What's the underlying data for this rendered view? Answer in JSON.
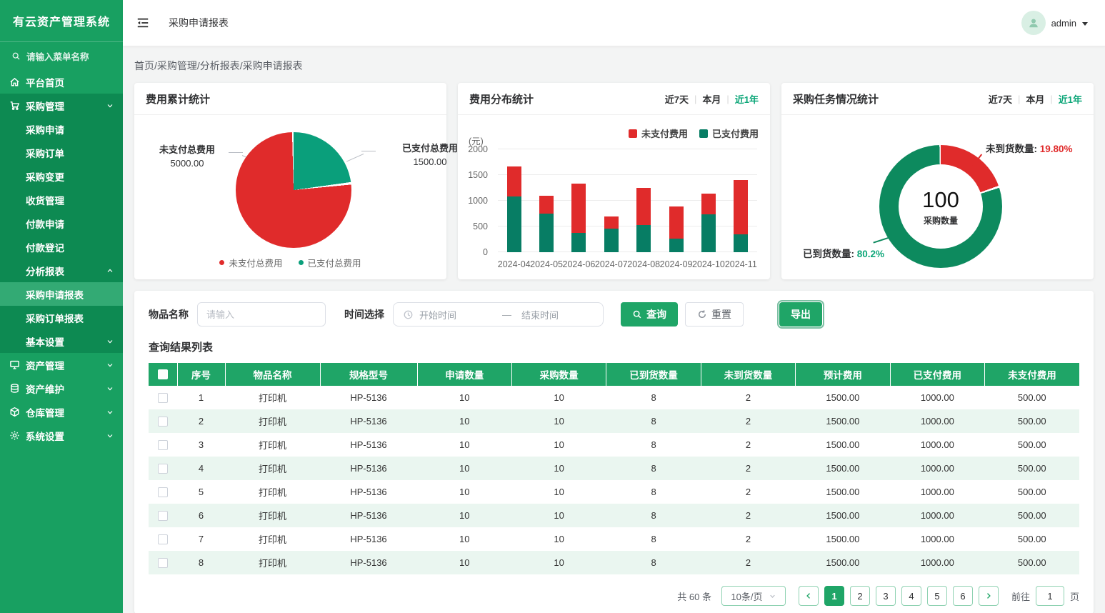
{
  "app": {
    "title": "有云资产管理系统"
  },
  "colors": {
    "sidebar_green": "#18a061",
    "sidebar_submenu_green": "#0d8a52",
    "sidebar_active_green": "#33aa74",
    "brand_green": "#1fa567",
    "teal_active_text": "#0ca678",
    "red": "#e02b2b",
    "bar_green": "#077d64",
    "pie_green": "#0a9f7b",
    "donut_green": "#0d8a5e",
    "table_stripe": "#eaf6f0"
  },
  "sidebar": {
    "search_placeholder": "请输入菜单名称",
    "items": [
      {
        "label": "平台首页",
        "icon": "home",
        "sub": false,
        "section": "base",
        "chevron": null,
        "active": false
      },
      {
        "label": "采购管理",
        "icon": "cart",
        "sub": false,
        "section": "dark",
        "chevron": "down",
        "active": false
      },
      {
        "label": "采购申请",
        "icon": null,
        "sub": true,
        "section": "dark",
        "chevron": null,
        "active": false
      },
      {
        "label": "采购订单",
        "icon": null,
        "sub": true,
        "section": "dark",
        "chevron": null,
        "active": false
      },
      {
        "label": "采购变更",
        "icon": null,
        "sub": true,
        "section": "dark",
        "chevron": null,
        "active": false
      },
      {
        "label": "收货管理",
        "icon": null,
        "sub": true,
        "section": "dark",
        "chevron": null,
        "active": false
      },
      {
        "label": "付款申请",
        "icon": null,
        "sub": true,
        "section": "dark",
        "chevron": null,
        "active": false
      },
      {
        "label": "付款登记",
        "icon": null,
        "sub": true,
        "section": "dark",
        "chevron": null,
        "active": false
      },
      {
        "label": "分析报表",
        "icon": null,
        "sub": true,
        "section": "dark",
        "chevron": "up",
        "active": false
      },
      {
        "label": "采购申请报表",
        "icon": null,
        "sub": true,
        "section": "dark",
        "chevron": null,
        "active": true
      },
      {
        "label": "采购订单报表",
        "icon": null,
        "sub": true,
        "section": "dark",
        "chevron": null,
        "active": false
      },
      {
        "label": "基本设置",
        "icon": null,
        "sub": true,
        "section": "dark",
        "chevron": "down",
        "active": false
      },
      {
        "label": "资产管理",
        "icon": "monitor",
        "sub": false,
        "section": "base",
        "chevron": "down",
        "active": false
      },
      {
        "label": "资产维护",
        "icon": "database",
        "sub": false,
        "section": "base",
        "chevron": "down",
        "active": false
      },
      {
        "label": "仓库管理",
        "icon": "box",
        "sub": false,
        "section": "base",
        "chevron": "down",
        "active": false
      },
      {
        "label": "系统设置",
        "icon": "gear",
        "sub": false,
        "section": "base",
        "chevron": "down",
        "active": false
      }
    ]
  },
  "topbar": {
    "page_title": "采购申请报表",
    "username": "admin"
  },
  "breadcrumb": "首页/采购管理/分析报表/采购申请报表",
  "period_tabs": {
    "labels": [
      "近7天",
      "本月",
      "近1年"
    ],
    "active": "近1年"
  },
  "chart_data": [
    {
      "id": "expense_total_pie",
      "type": "pie",
      "title": "费用累计统计",
      "slices": [
        {
          "label": "未支付总费用",
          "value": 5000.0,
          "color": "#e02b2b"
        },
        {
          "label": "已支付总费用",
          "value": 1500.0,
          "color": "#0a9f7b"
        }
      ],
      "callouts": [
        {
          "text": "未支付总费用",
          "value": "5000.00"
        },
        {
          "text": "已支付总费用",
          "value": "1500.00"
        }
      ],
      "legend": [
        "未支付总费用",
        "已支付总费用"
      ],
      "legend_colors": [
        "#e02b2b",
        "#0a9f7b"
      ]
    },
    {
      "id": "expense_distribution_bar",
      "type": "bar",
      "stacked": true,
      "title": "费用分布统计",
      "unit": "(元)",
      "ylim": [
        0,
        2000
      ],
      "yticks": [
        0,
        500,
        1000,
        1500,
        2000
      ],
      "categories": [
        "2024-04",
        "2024-05",
        "2024-06",
        "2024-07",
        "2024-08",
        "2024-09",
        "2024-10",
        "2024-11"
      ],
      "series": [
        {
          "name": "已支付费用",
          "color": "#077d64",
          "values": [
            1080,
            750,
            370,
            460,
            530,
            270,
            730,
            350
          ]
        },
        {
          "name": "未支付费用",
          "color": "#e02b2b",
          "values": [
            590,
            350,
            970,
            230,
            720,
            620,
            410,
            1060
          ]
        }
      ],
      "legend": [
        "未支付费用",
        "已支付费用"
      ],
      "legend_colors": [
        "#e02b2b",
        "#077d64"
      ],
      "grid": true,
      "legend_position": "top-right"
    },
    {
      "id": "purchase_task_donut",
      "type": "pie",
      "subtype": "donut",
      "title": "采购任务情况统计",
      "center_value": "100",
      "center_label": "采购数量",
      "slices": [
        {
          "label": "未到货数量",
          "pct": 19.8,
          "display": "19.80%",
          "color": "#e02b2b"
        },
        {
          "label": "已到货数量",
          "pct": 80.2,
          "display": "80.2%",
          "color": "#0d8a5e"
        }
      ],
      "callouts": [
        {
          "text": "未到货数量:",
          "value": "19.80%"
        },
        {
          "text": "已到货数量:",
          "value": "80.2%"
        }
      ]
    }
  ],
  "filters": {
    "item_name_label": "物品名称",
    "item_name_placeholder": "请输入",
    "time_label": "时间选择",
    "start_placeholder": "开始时间",
    "separator": "—",
    "end_placeholder": "结束时间",
    "search_btn": "查询",
    "reset_btn": "重置",
    "export_btn": "导出"
  },
  "results": {
    "section_title": "查询结果列表",
    "columns": [
      "序号",
      "物品名称",
      "规格型号",
      "申请数量",
      "采购数量",
      "已到货数量",
      "未到货数量",
      "预计费用",
      "已支付费用",
      "未支付费用"
    ],
    "rows": [
      [
        "1",
        "打印机",
        "HP-5136",
        "10",
        "10",
        "8",
        "2",
        "1500.00",
        "1000.00",
        "500.00"
      ],
      [
        "2",
        "打印机",
        "HP-5136",
        "10",
        "10",
        "8",
        "2",
        "1500.00",
        "1000.00",
        "500.00"
      ],
      [
        "3",
        "打印机",
        "HP-5136",
        "10",
        "10",
        "8",
        "2",
        "1500.00",
        "1000.00",
        "500.00"
      ],
      [
        "4",
        "打印机",
        "HP-5136",
        "10",
        "10",
        "8",
        "2",
        "1500.00",
        "1000.00",
        "500.00"
      ],
      [
        "5",
        "打印机",
        "HP-5136",
        "10",
        "10",
        "8",
        "2",
        "1500.00",
        "1000.00",
        "500.00"
      ],
      [
        "6",
        "打印机",
        "HP-5136",
        "10",
        "10",
        "8",
        "2",
        "1500.00",
        "1000.00",
        "500.00"
      ],
      [
        "7",
        "打印机",
        "HP-5136",
        "10",
        "10",
        "8",
        "2",
        "1500.00",
        "1000.00",
        "500.00"
      ],
      [
        "8",
        "打印机",
        "HP-5136",
        "10",
        "10",
        "8",
        "2",
        "1500.00",
        "1000.00",
        "500.00"
      ]
    ]
  },
  "pagination": {
    "total_text": "共 60 条",
    "page_size": "10条/页",
    "pages": [
      "1",
      "2",
      "3",
      "4",
      "5",
      "6"
    ],
    "active_page": "1",
    "goto_label": "前往",
    "goto_value": "1",
    "page_unit": "页"
  }
}
